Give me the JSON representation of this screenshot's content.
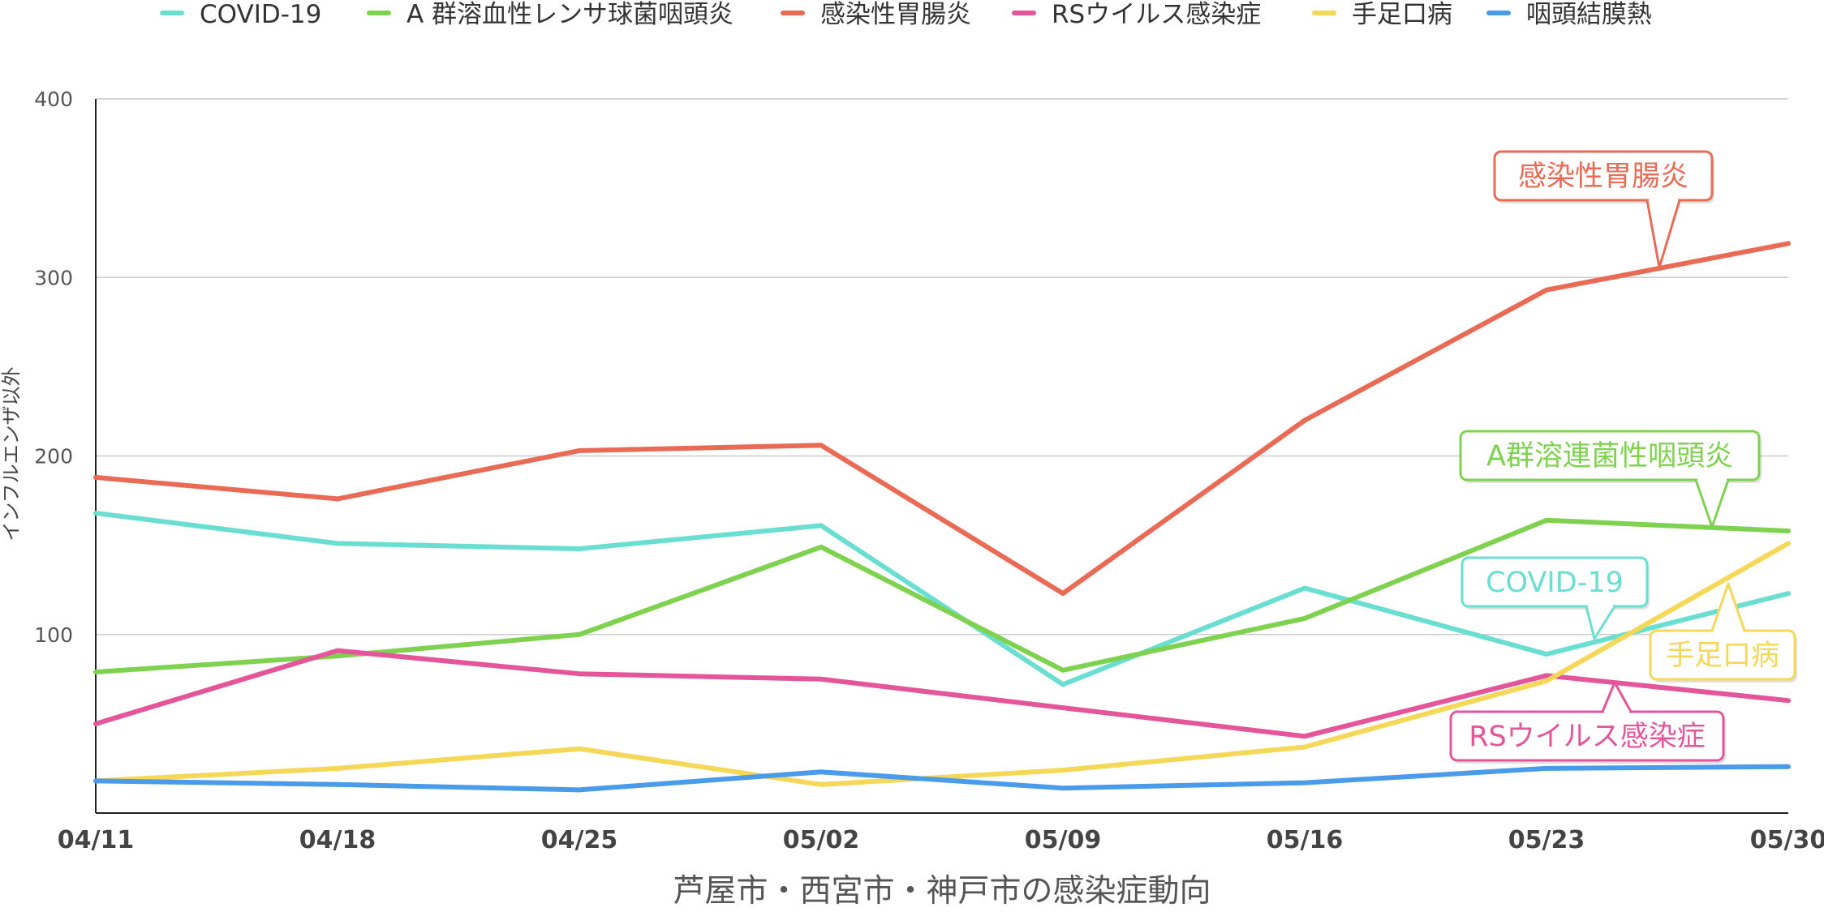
{
  "chart_data": {
    "type": "line",
    "title": "",
    "xlabel": "芦屋市・西宮市・神戸市の感染症動向",
    "ylabel": "インフルエンザ以外",
    "ylim": [
      0,
      400
    ],
    "yticks": [
      100,
      200,
      300,
      400
    ],
    "grid": true,
    "legend_position": "top",
    "categories": [
      "04/11",
      "04/18",
      "04/25",
      "05/02",
      "05/09",
      "05/16",
      "05/23",
      "05/30"
    ],
    "series": [
      {
        "name": "COVID-19",
        "color": "#6adfd1",
        "values": [
          168,
          151,
          148,
          161,
          72,
          126,
          89,
          123
        ]
      },
      {
        "name": "A 群溶血性レンサ球菌咽頭炎",
        "color": "#7fd24f",
        "values": [
          79,
          88,
          100,
          149,
          80,
          109,
          164,
          158
        ]
      },
      {
        "name": "感染性胃腸炎",
        "color": "#ea6b55",
        "values": [
          188,
          176,
          203,
          206,
          123,
          220,
          293,
          319
        ]
      },
      {
        "name": "RSウイルス感染症",
        "color": "#e4559a",
        "values": [
          50,
          91,
          78,
          75,
          59,
          43,
          77,
          63
        ]
      },
      {
        "name": "手足口病",
        "color": "#f5d858",
        "values": [
          18,
          25,
          36,
          16,
          24,
          37,
          74,
          151
        ]
      },
      {
        "name": "咽頭結膜熱",
        "color": "#4a9bea",
        "values": [
          18,
          16,
          13,
          23,
          14,
          17,
          25,
          26
        ]
      }
    ],
    "annotations": [
      {
        "text": "感染性胃腸炎",
        "color": "#ea6b55",
        "series": 2,
        "x": 6.5,
        "y": 306
      },
      {
        "text": "A群溶連菌性咽頭炎",
        "color": "#7fd24f",
        "series": 1,
        "x": 6.7,
        "y": 160
      },
      {
        "text": "COVID-19",
        "color": "#6adfd1",
        "series": 0,
        "x": 6.2,
        "y": 98
      },
      {
        "text": "手足口病",
        "color": "#f5d858",
        "series": 4,
        "x": 6.75,
        "y": 127
      },
      {
        "text": "RSウイルス感染症",
        "color": "#e4559a",
        "series": 3,
        "x": 6.3,
        "y": 75
      }
    ]
  }
}
